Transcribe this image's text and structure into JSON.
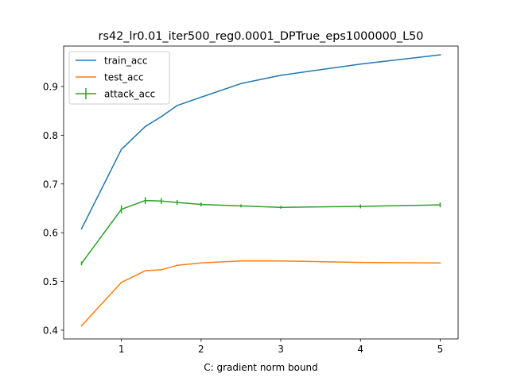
{
  "chart_data": {
    "type": "line",
    "title": "rs42_lr0.01_iter500_reg0.0001_DPTrue_eps1000000_L50",
    "xlabel": "C: gradient norm bound",
    "ylabel": "",
    "xlim": [
      0.275,
      5.225
    ],
    "ylim": [
      0.382,
      0.983
    ],
    "xticks": [
      1,
      2,
      3,
      4,
      5
    ],
    "xtick_labels": [
      "1",
      "2",
      "3",
      "4",
      "5"
    ],
    "yticks": [
      0.4,
      0.5,
      0.6,
      0.7,
      0.8,
      0.9
    ],
    "ytick_labels": [
      "0.4",
      "0.5",
      "0.6",
      "0.7",
      "0.8",
      "0.9"
    ],
    "grid": false,
    "legend_position": "upper-left",
    "x": [
      0.5,
      1.0,
      1.3,
      1.5,
      1.7,
      2.0,
      2.5,
      3.0,
      4.0,
      5.0
    ],
    "series": [
      {
        "name": "train_acc",
        "color": "#1f77b4",
        "values": [
          0.608,
          0.771,
          0.818,
          0.838,
          0.861,
          0.878,
          0.906,
          0.923,
          0.946,
          0.965
        ]
      },
      {
        "name": "test_acc",
        "color": "#ff7f0e",
        "values": [
          0.409,
          0.498,
          0.522,
          0.524,
          0.533,
          0.538,
          0.542,
          0.542,
          0.539,
          0.538
        ]
      },
      {
        "name": "attack_acc",
        "color": "#2ca02c",
        "errorbars": true,
        "values": [
          0.537,
          0.648,
          0.666,
          0.665,
          0.662,
          0.658,
          0.655,
          0.652,
          0.654,
          0.657
        ],
        "errors": [
          0.004,
          0.008,
          0.007,
          0.006,
          0.005,
          0.004,
          0.003,
          0.003,
          0.004,
          0.005
        ]
      }
    ]
  }
}
